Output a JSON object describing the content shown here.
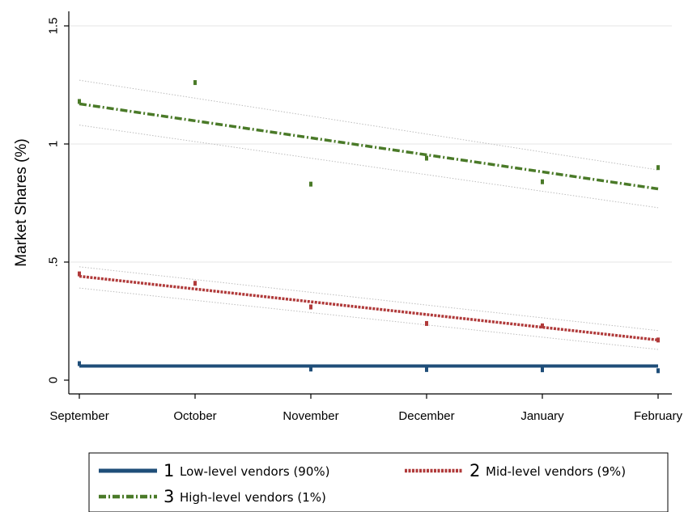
{
  "chart_data": {
    "type": "line",
    "ylabel": "Market Shares (%)",
    "xlabel": "",
    "categories": [
      "September",
      "October",
      "November",
      "December",
      "January",
      "February"
    ],
    "ylim": [
      0,
      1.5
    ],
    "yticks": [
      0,
      0.5,
      1,
      1.5
    ],
    "ytick_labels": [
      "0",
      ".5",
      "1",
      "1.5"
    ],
    "grid": true,
    "legend_position": "bottom",
    "series": [
      {
        "id": "1",
        "name": "Low-level vendors (90%)",
        "color": "#1f4e79",
        "style": "solid",
        "fit": [
          0.06,
          0.06
        ],
        "ci": [
          [
            0.057,
            0.057
          ],
          [
            0.063,
            0.063
          ]
        ],
        "points": [
          [
            0,
            0.07
          ],
          [
            2,
            0.047
          ],
          [
            3,
            0.045
          ],
          [
            4,
            0.044
          ],
          [
            5,
            0.04
          ]
        ]
      },
      {
        "id": "2",
        "name": "Mid-level vendors (9%)",
        "color": "#b03a3a",
        "style": "dotted",
        "fit": [
          0.44,
          0.17
        ],
        "ci": [
          [
            0.39,
            0.13
          ],
          [
            0.48,
            0.21
          ]
        ],
        "points": [
          [
            0,
            0.45
          ],
          [
            1,
            0.41
          ],
          [
            2,
            0.31
          ],
          [
            3,
            0.24
          ],
          [
            4,
            0.23
          ],
          [
            5,
            0.17
          ]
        ]
      },
      {
        "id": "3",
        "name": "High-level vendors (1%)",
        "color": "#4a7a28",
        "style": "dashdot",
        "fit": [
          1.17,
          0.81
        ],
        "ci": [
          [
            1.08,
            0.73
          ],
          [
            1.27,
            0.89
          ]
        ],
        "points": [
          [
            0,
            1.18
          ],
          [
            1,
            1.26
          ],
          [
            2,
            0.83
          ],
          [
            3,
            0.94
          ],
          [
            4,
            0.84
          ],
          [
            5,
            0.9
          ]
        ]
      }
    ]
  }
}
